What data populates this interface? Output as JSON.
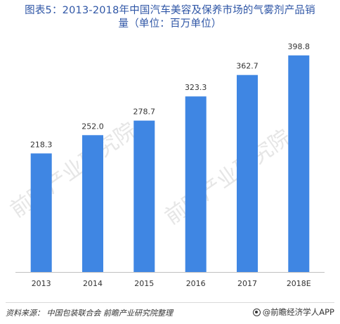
{
  "title_line1": "图表5：2013-2018年中国汽车美容及保养市场的气雾剂产品销",
  "title_line2": "量（单位：百万单位）",
  "watermark": "前瞻产业研究院",
  "source": "资料来源：  中国包装联合会  前瞻产业研究院整理",
  "brand": "@前瞻经济学人APP",
  "colors": {
    "bar": "#3f86e3",
    "axis": "#bfbfbf",
    "title": "#2f56a6"
  },
  "chart_data": {
    "type": "bar",
    "categories": [
      "2013",
      "2014",
      "2015",
      "2016",
      "2017",
      "2018E"
    ],
    "values": [
      218.3,
      252.0,
      278.7,
      323.3,
      362.7,
      398.8
    ],
    "value_labels": [
      "218.3",
      "252.0",
      "278.7",
      "323.3",
      "362.7",
      "398.8"
    ],
    "ylim": [
      0,
      440
    ],
    "grid": false,
    "legend": "none"
  }
}
